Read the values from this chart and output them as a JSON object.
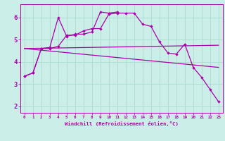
{
  "background_color": "#cceee8",
  "grid_color": "#aaddcc",
  "line_color": "#aa00aa",
  "xlabel": "Windchill (Refroidissement éolien,°C)",
  "xlim": [
    -0.5,
    23.5
  ],
  "ylim": [
    1.7,
    6.6
  ],
  "xtick_labels": [
    "0",
    "1",
    "2",
    "3",
    "4",
    "5",
    "6",
    "7",
    "8",
    "9",
    "10",
    "11",
    "12",
    "13",
    "14",
    "15",
    "16",
    "17",
    "18",
    "19",
    "20",
    "21",
    "22",
    "23"
  ],
  "ytick_values": [
    2,
    3,
    4,
    5,
    6
  ],
  "series1_x": [
    0,
    1,
    2,
    3,
    4,
    5,
    6,
    7,
    8,
    9,
    10,
    11,
    12,
    13,
    14,
    15,
    16,
    17,
    18,
    19,
    20,
    21,
    22,
    23
  ],
  "series1_y": [
    3.35,
    3.5,
    4.6,
    4.6,
    4.7,
    5.2,
    5.2,
    5.4,
    5.5,
    5.5,
    6.15,
    6.2,
    6.2,
    6.2,
    5.7,
    5.6,
    4.9,
    4.4,
    4.35,
    4.8,
    3.75,
    3.3,
    2.75,
    2.2
  ],
  "series2_x": [
    0,
    1,
    2,
    3,
    4,
    5,
    6,
    7,
    8,
    9,
    10,
    11
  ],
  "series2_y": [
    3.35,
    3.5,
    4.6,
    4.65,
    6.0,
    5.15,
    5.25,
    5.25,
    5.35,
    6.25,
    6.2,
    6.25
  ],
  "trendline1_x": [
    0,
    23
  ],
  "trendline1_y": [
    4.6,
    4.75
  ],
  "trendline2_x": [
    0,
    23
  ],
  "trendline2_y": [
    4.6,
    3.75
  ]
}
